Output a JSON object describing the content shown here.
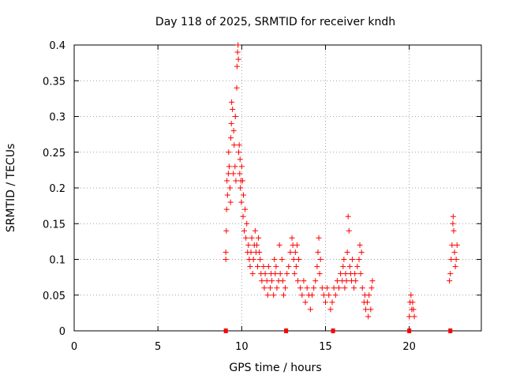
{
  "chart_data": {
    "type": "scatter",
    "title": "Day 118 of 2025, SRMTID for receiver kndh",
    "xlabel": "GPS time / hours",
    "ylabel": "SRMTID / TECUs",
    "xlim": [
      0,
      24.3
    ],
    "ylim": [
      0,
      0.4
    ],
    "grid": true,
    "legend": "none",
    "x_ticks": [
      0,
      5,
      10,
      15,
      20
    ],
    "x_tick_labels": [
      "0",
      "5",
      "10",
      "15",
      "20"
    ],
    "y_ticks": [
      0,
      0.05,
      0.1,
      0.15,
      0.2,
      0.25,
      0.3,
      0.35,
      0.4
    ],
    "y_tick_labels": [
      "0",
      "0.05",
      "0.1",
      "0.15",
      "0.2",
      "0.25",
      "0.3",
      "0.35",
      "0.4"
    ],
    "marker_color": "#ff0000",
    "baseline_markers_x": [
      9.05,
      12.65,
      15.45,
      20.0,
      22.45
    ],
    "series": [
      {
        "name": "SRMTID",
        "marker": "plus",
        "points": [
          [
            9.05,
            0.1
          ],
          [
            9.05,
            0.11
          ],
          [
            9.08,
            0.14
          ],
          [
            9.1,
            0.17
          ],
          [
            9.12,
            0.21
          ],
          [
            9.15,
            0.19
          ],
          [
            9.2,
            0.22
          ],
          [
            9.22,
            0.25
          ],
          [
            9.25,
            0.23
          ],
          [
            9.3,
            0.2
          ],
          [
            9.33,
            0.18
          ],
          [
            9.35,
            0.27
          ],
          [
            9.38,
            0.29
          ],
          [
            9.4,
            0.32
          ],
          [
            9.45,
            0.31
          ],
          [
            9.5,
            0.22
          ],
          [
            9.52,
            0.28
          ],
          [
            9.55,
            0.26
          ],
          [
            9.6,
            0.23
          ],
          [
            9.62,
            0.3
          ],
          [
            9.65,
            0.21
          ],
          [
            9.7,
            0.34
          ],
          [
            9.72,
            0.37
          ],
          [
            9.75,
            0.39
          ],
          [
            9.78,
            0.4
          ],
          [
            9.8,
            0.38
          ],
          [
            9.82,
            0.25
          ],
          [
            9.85,
            0.26
          ],
          [
            9.88,
            0.22
          ],
          [
            9.9,
            0.24
          ],
          [
            9.92,
            0.2
          ],
          [
            9.95,
            0.21
          ],
          [
            9.98,
            0.18
          ],
          [
            10.0,
            0.23
          ],
          [
            10.05,
            0.21
          ],
          [
            10.08,
            0.16
          ],
          [
            10.1,
            0.19
          ],
          [
            10.15,
            0.14
          ],
          [
            10.2,
            0.17
          ],
          [
            10.25,
            0.13
          ],
          [
            10.3,
            0.15
          ],
          [
            10.35,
            0.11
          ],
          [
            10.4,
            0.12
          ],
          [
            10.45,
            0.1
          ],
          [
            10.5,
            0.09
          ],
          [
            10.55,
            0.11
          ],
          [
            10.6,
            0.13
          ],
          [
            10.65,
            0.08
          ],
          [
            10.7,
            0.1
          ],
          [
            10.75,
            0.12
          ],
          [
            10.8,
            0.14
          ],
          [
            10.85,
            0.11
          ],
          [
            10.9,
            0.12
          ],
          [
            10.95,
            0.09
          ],
          [
            11.0,
            0.13
          ],
          [
            11.05,
            0.11
          ],
          [
            11.1,
            0.1
          ],
          [
            11.15,
            0.08
          ],
          [
            11.2,
            0.07
          ],
          [
            11.3,
            0.09
          ],
          [
            11.35,
            0.06
          ],
          [
            11.4,
            0.08
          ],
          [
            11.5,
            0.07
          ],
          [
            11.55,
            0.05
          ],
          [
            11.6,
            0.09
          ],
          [
            11.7,
            0.06
          ],
          [
            11.75,
            0.08
          ],
          [
            11.8,
            0.07
          ],
          [
            11.9,
            0.05
          ],
          [
            11.95,
            0.1
          ],
          [
            12.0,
            0.08
          ],
          [
            12.05,
            0.09
          ],
          [
            12.1,
            0.06
          ],
          [
            12.2,
            0.07
          ],
          [
            12.25,
            0.12
          ],
          [
            12.3,
            0.08
          ],
          [
            12.4,
            0.1
          ],
          [
            12.45,
            0.07
          ],
          [
            12.5,
            0.05
          ],
          [
            12.6,
            0.06
          ],
          [
            12.7,
            0.08
          ],
          [
            12.8,
            0.09
          ],
          [
            12.9,
            0.11
          ],
          [
            13.0,
            0.13
          ],
          [
            13.05,
            0.12
          ],
          [
            13.1,
            0.1
          ],
          [
            13.15,
            0.08
          ],
          [
            13.2,
            0.11
          ],
          [
            13.25,
            0.09
          ],
          [
            13.3,
            0.12
          ],
          [
            13.35,
            0.07
          ],
          [
            13.4,
            0.1
          ],
          [
            13.5,
            0.06
          ],
          [
            13.6,
            0.05
          ],
          [
            13.7,
            0.07
          ],
          [
            13.8,
            0.04
          ],
          [
            13.9,
            0.06
          ],
          [
            14.0,
            0.05
          ],
          [
            14.1,
            0.03
          ],
          [
            14.2,
            0.05
          ],
          [
            14.3,
            0.06
          ],
          [
            14.4,
            0.07
          ],
          [
            14.5,
            0.09
          ],
          [
            14.55,
            0.11
          ],
          [
            14.6,
            0.13
          ],
          [
            14.65,
            0.08
          ],
          [
            14.7,
            0.1
          ],
          [
            14.8,
            0.06
          ],
          [
            14.9,
            0.05
          ],
          [
            15.0,
            0.04
          ],
          [
            15.1,
            0.06
          ],
          [
            15.2,
            0.05
          ],
          [
            15.3,
            0.03
          ],
          [
            15.4,
            0.04
          ],
          [
            15.5,
            0.06
          ],
          [
            15.6,
            0.05
          ],
          [
            15.7,
            0.07
          ],
          [
            15.8,
            0.06
          ],
          [
            15.9,
            0.08
          ],
          [
            16.0,
            0.07
          ],
          [
            16.05,
            0.09
          ],
          [
            16.1,
            0.1
          ],
          [
            16.15,
            0.06
          ],
          [
            16.2,
            0.08
          ],
          [
            16.25,
            0.07
          ],
          [
            16.3,
            0.11
          ],
          [
            16.35,
            0.16
          ],
          [
            16.4,
            0.14
          ],
          [
            16.45,
            0.09
          ],
          [
            16.5,
            0.08
          ],
          [
            16.55,
            0.07
          ],
          [
            16.6,
            0.1
          ],
          [
            16.7,
            0.06
          ],
          [
            16.75,
            0.08
          ],
          [
            16.8,
            0.07
          ],
          [
            16.9,
            0.09
          ],
          [
            17.0,
            0.1
          ],
          [
            17.05,
            0.12
          ],
          [
            17.1,
            0.08
          ],
          [
            17.15,
            0.11
          ],
          [
            17.2,
            0.06
          ],
          [
            17.3,
            0.04
          ],
          [
            17.35,
            0.05
          ],
          [
            17.4,
            0.03
          ],
          [
            17.5,
            0.04
          ],
          [
            17.55,
            0.02
          ],
          [
            17.6,
            0.05
          ],
          [
            17.7,
            0.03
          ],
          [
            17.75,
            0.06
          ],
          [
            17.8,
            0.07
          ],
          [
            20.0,
            0.02
          ],
          [
            20.05,
            0.04
          ],
          [
            20.1,
            0.05
          ],
          [
            20.15,
            0.03
          ],
          [
            20.2,
            0.04
          ],
          [
            20.25,
            0.03
          ],
          [
            20.3,
            0.02
          ],
          [
            22.4,
            0.07
          ],
          [
            22.45,
            0.08
          ],
          [
            22.5,
            0.1
          ],
          [
            22.55,
            0.12
          ],
          [
            22.6,
            0.15
          ],
          [
            22.62,
            0.16
          ],
          [
            22.65,
            0.14
          ],
          [
            22.7,
            0.11
          ],
          [
            22.75,
            0.09
          ],
          [
            22.8,
            0.1
          ],
          [
            22.85,
            0.12
          ]
        ]
      }
    ]
  }
}
